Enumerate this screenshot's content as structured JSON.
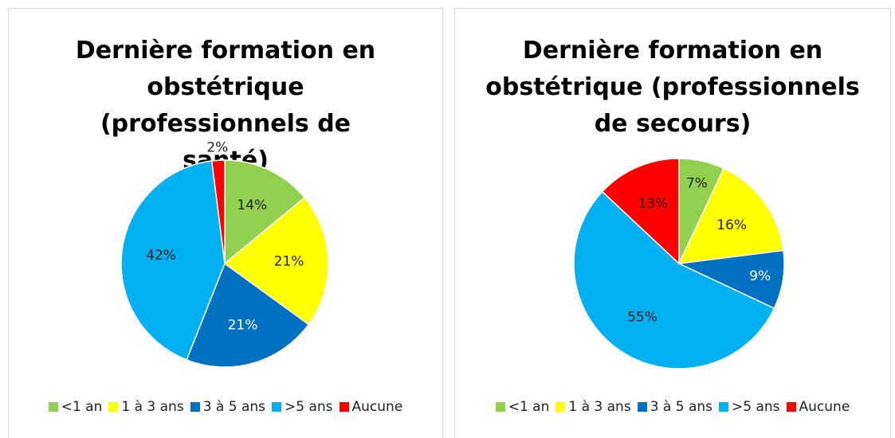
{
  "chart_data": [
    {
      "type": "pie",
      "title": "Dernière formation en obstétrique (professionnels de santé)",
      "categories": [
        "<1 an",
        "1 à 3 ans",
        "3 à 5 ans",
        ">5 ans",
        "Aucune"
      ],
      "values": [
        14,
        21,
        21,
        42,
        2
      ],
      "value_labels": [
        "14%",
        "21%",
        "21%",
        "42%",
        "2%"
      ],
      "colors": [
        "#92d050",
        "#ffff00",
        "#0070c0",
        "#00b0f0",
        "#ff0000"
      ],
      "legend": "bottom"
    },
    {
      "type": "pie",
      "title": "Dernière formation en obstétrique (professionnels de secours)",
      "categories": [
        "<1 an",
        "1 à 3 ans",
        "3 à 5 ans",
        ">5 ans",
        "Aucune"
      ],
      "values": [
        7,
        16,
        9,
        55,
        13
      ],
      "value_labels": [
        "7%",
        "16%",
        "9%",
        "55%",
        "13%"
      ],
      "colors": [
        "#92d050",
        "#ffff00",
        "#0070c0",
        "#00b0f0",
        "#ff0000"
      ],
      "legend": "bottom"
    }
  ]
}
